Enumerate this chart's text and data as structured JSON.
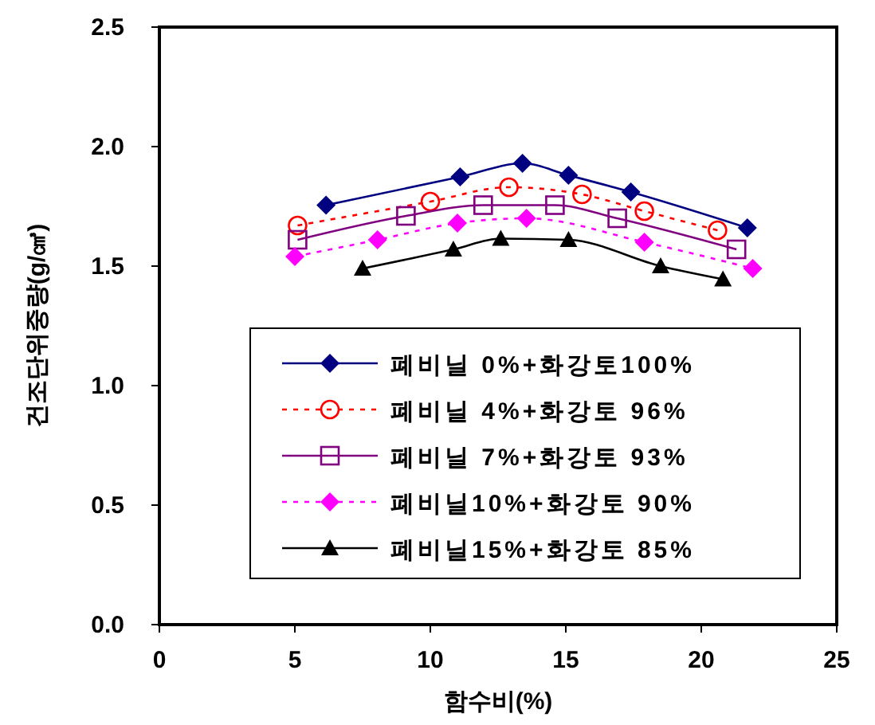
{
  "chart_data": {
    "type": "line",
    "xlabel": "함수비(%)",
    "ylabel": "건조단위중량(g/㎤)",
    "xlim": [
      0,
      25
    ],
    "xticks": [
      0,
      5,
      10,
      15,
      20,
      25
    ],
    "ylim": [
      0,
      2.5
    ],
    "yticks": [
      {
        "value": 0,
        "label": "0.0"
      },
      {
        "value": 0.5,
        "label": "0.5"
      },
      {
        "value": 1,
        "label": "1.0"
      },
      {
        "value": 1.5,
        "label": "1.5"
      },
      {
        "value": 2,
        "label": "2.0"
      },
      {
        "value": 2.5,
        "label": "2.5"
      }
    ],
    "grid": false,
    "legend": "bottom right",
    "series": [
      {
        "name": "폐비닐 0%+화강토100%",
        "color": "#000080",
        "marker": "diamond",
        "line_style": "solid",
        "x": [
          6.15,
          11.1,
          13.4,
          15.1,
          17.4,
          21.7
        ],
        "values": [
          1.755,
          1.873,
          1.93,
          1.88,
          1.81,
          1.66
        ]
      },
      {
        "name": "폐비닐 4%+화강토 96%",
        "color": "#ff0000",
        "marker": "circle",
        "line_style": "dotted",
        "x": [
          5.1,
          10.0,
          12.9,
          15.6,
          17.9,
          20.6
        ],
        "values": [
          1.67,
          1.77,
          1.83,
          1.8,
          1.73,
          1.65
        ]
      },
      {
        "name": "폐비닐 7%+화강토 93%",
        "color": "#800080",
        "marker": "square",
        "line_style": "solid",
        "x": [
          5.1,
          9.1,
          11.95,
          14.6,
          16.9,
          21.3
        ],
        "values": [
          1.61,
          1.71,
          1.755,
          1.755,
          1.7,
          1.57
        ]
      },
      {
        "name": "폐비닐10%+화강토 90%",
        "color": "#ff00ff",
        "marker": "diamond",
        "line_style": "dotted",
        "x": [
          5.0,
          8.05,
          11.0,
          13.55,
          17.9,
          21.9
        ],
        "values": [
          1.54,
          1.61,
          1.68,
          1.7,
          1.6,
          1.49
        ]
      },
      {
        "name": "폐비닐15%+화강토 85%",
        "color": "#000000",
        "marker": "triangle",
        "line_style": "solid",
        "x": [
          7.5,
          10.85,
          12.6,
          15.1,
          18.5,
          20.8
        ],
        "values": [
          1.49,
          1.57,
          1.615,
          1.61,
          1.5,
          1.445
        ]
      }
    ]
  }
}
